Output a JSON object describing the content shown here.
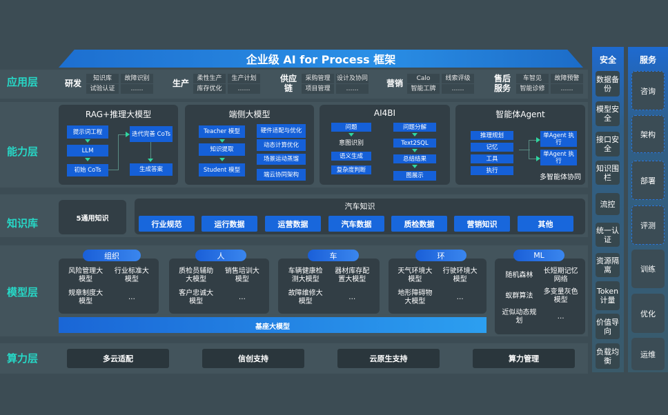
{
  "title": "企业级 AI for Process 框架",
  "layers": [
    "应用层",
    "能力层",
    "知识库",
    "模型层",
    "算力层"
  ],
  "application": [
    {
      "name": "研发",
      "items": [
        "知识库",
        "故障识别",
        "试验认证",
        "……"
      ]
    },
    {
      "name": "生产",
      "items": [
        "柔性生产",
        "生产计划",
        "库存优化",
        "……"
      ]
    },
    {
      "name": "供应链",
      "items": [
        "采购管理",
        "设计及协同",
        "项目管理",
        "……"
      ]
    },
    {
      "name": "营销",
      "items": [
        "Calo",
        "线索评级",
        "智能工牌",
        "……"
      ]
    },
    {
      "name": "售后服务",
      "items": [
        "车智见",
        "故障预警",
        "智能诊修",
        "……"
      ]
    }
  ],
  "capability": {
    "rag": {
      "title": "RAG+推理大模型",
      "items": [
        "提示词工程",
        "LLM",
        "初始 CoTs",
        "迭代完善 CoTs",
        "生成答案"
      ]
    },
    "edge": {
      "title": "端侧大模型",
      "items": [
        "Teacher 模型",
        "知识提取",
        "Student 模型",
        "硬件适配与优化",
        "动态计算优化",
        "场景运动蒸馏",
        "端云协同架构"
      ]
    },
    "ai4bi": {
      "title": "AI4BI",
      "items": [
        "问题",
        "意图识别",
        "语义生成",
        "复杂度判断",
        "问题分解",
        "Text2SQL",
        "总结结果",
        "图展示"
      ]
    },
    "agent": {
      "title": "智能体Agent",
      "items": [
        "推理规划",
        "记忆",
        "工具",
        "执行",
        "单Agent 执行",
        "单Agent 执行",
        "多智能体协同"
      ]
    }
  },
  "knowledge": {
    "general": "5通用知识",
    "auto_title": "汽车知识",
    "items": [
      "行业规范",
      "运行数据",
      "运营数据",
      "汽车数据",
      "质检数据",
      "营销知识",
      "其他"
    ]
  },
  "models": {
    "groups": [
      {
        "name": "组织",
        "items": [
          "风险管理大模型",
          "行业标准大模型",
          "规章制度大模型",
          "…"
        ]
      },
      {
        "name": "人",
        "items": [
          "质检员辅助大模型",
          "销售培训大模型",
          "客户忠诚大模型",
          "…"
        ]
      },
      {
        "name": "车",
        "items": [
          "车辆健康检测大模型",
          "器材库存配置大模型",
          "故障维修大模型",
          "…"
        ]
      },
      {
        "name": "环",
        "items": [
          "天气环境大模型",
          "行驶环境大模型",
          "地形障碍物大模型",
          "…"
        ]
      },
      {
        "name": "ML",
        "items": [
          "随机森林",
          "长短期记忆网络",
          "蚁群算法",
          "多变量灰色模型",
          "近似动态规划",
          "…"
        ]
      }
    ],
    "base": "基座大模型"
  },
  "compute": [
    "多云适配",
    "信创支持",
    "云原生支持",
    "算力管理"
  ],
  "security": {
    "title": "安全",
    "items": [
      "数据备份",
      "模型安全",
      "接口安全",
      "知识围栏",
      "流控",
      "统一认证",
      "资源隔离",
      "Token计量",
      "价值导向",
      "负载均衡"
    ]
  },
  "service": {
    "title": "服务",
    "items": [
      "咨询",
      "架构",
      "部署",
      "评测",
      "训练",
      "优化",
      "运维"
    ]
  },
  "colors": {
    "background": "#3c4c54",
    "accent_blue": "#1867dc",
    "layer_label": "#27d7c6",
    "arrow": "#2fd6a0"
  }
}
